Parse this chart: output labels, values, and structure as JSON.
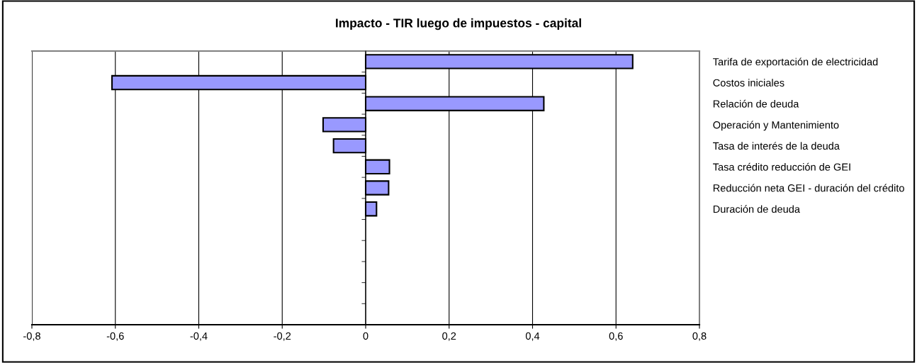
{
  "chart_data": {
    "type": "bar",
    "orientation": "horizontal",
    "title": "Impacto - TIR luego de impuestos - capital",
    "categories": [
      "Tarifa de exportación de electricidad",
      "Costos iniciales",
      "Relación de deuda",
      "Operación y Mantenimiento",
      "Tasa de interés de la deuda",
      "Tasa crédito reducción de GEI",
      "Reducción neta GEI - duración del crédito",
      "Duración de deuda",
      null,
      null,
      null,
      null,
      null
    ],
    "values": [
      0.64,
      -0.608,
      0.427,
      -0.102,
      -0.077,
      0.057,
      0.055,
      0.026,
      null,
      null,
      null,
      null,
      null
    ],
    "color": "#9999ff",
    "xlim": [
      -0.8,
      0.8
    ],
    "xticks": [
      {
        "value": -0.8,
        "label": "-0,8"
      },
      {
        "value": -0.6,
        "label": "-0,6"
      },
      {
        "value": -0.4,
        "label": "-0,4"
      },
      {
        "value": -0.2,
        "label": "-0,2"
      },
      0,
      {
        "value": 0.2,
        "label": "0,2"
      },
      {
        "value": 0.4,
        "label": "0,4"
      },
      {
        "value": 0.6,
        "label": "0,6"
      },
      {
        "value": 0.8,
        "label": "0,8"
      }
    ],
    "grid": "x"
  }
}
